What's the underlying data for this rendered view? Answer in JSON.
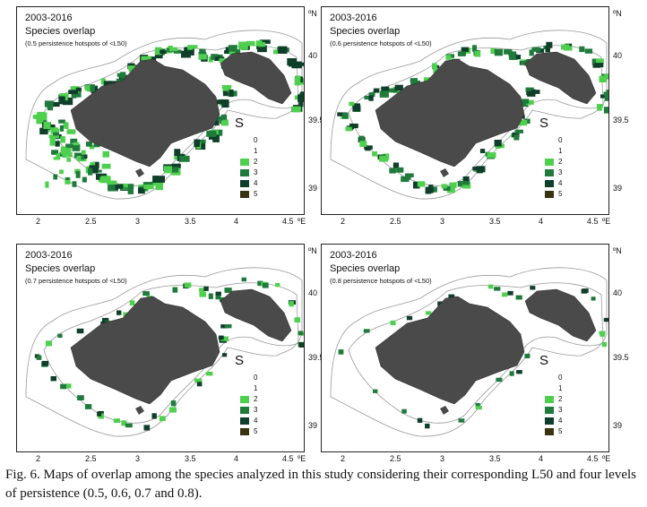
{
  "panels": [
    {
      "period": "2003-2016",
      "title": "Species overlap",
      "subtitle": "(0.5 persistence hotspots of <L50)"
    },
    {
      "period": "2003-2016",
      "title": "Species overlap",
      "subtitle": "(0.6 persistence hotspots of <L50)"
    },
    {
      "period": "2003-2016",
      "title": "Species overlap",
      "subtitle": "(0.7 persistence hotspots of <L50)"
    },
    {
      "period": "2003-2016",
      "title": "Species overlap",
      "subtitle": "(0.8 persistence hotspots of <L50)"
    }
  ],
  "axes": {
    "lat_unit": "ºN",
    "lon_unit": "ºE",
    "lat_ticks": [
      "40",
      "39.5",
      "39"
    ],
    "lon_ticks": [
      "2",
      "2.5",
      "3",
      "3.5",
      "4",
      "4.5"
    ]
  },
  "legend": {
    "title": "S",
    "items": [
      {
        "label": "0",
        "color": "#ffffff"
      },
      {
        "label": "1",
        "color": "#ffffff"
      },
      {
        "label": "2",
        "color": "#4ed04e"
      },
      {
        "label": "3",
        "color": "#1f7a3c"
      },
      {
        "label": "4",
        "color": "#0f3f2a"
      },
      {
        "label": "5",
        "color": "#3a3312"
      }
    ]
  },
  "colors": {
    "land": "#4a4a4a",
    "contour": "#9a9a9a"
  },
  "caption": "Fig. 6. Maps of overlap among the species analyzed in this study considering their corresponding L50 and four levels of persistence (0.5, 0.6, 0.7 and 0.8)."
}
